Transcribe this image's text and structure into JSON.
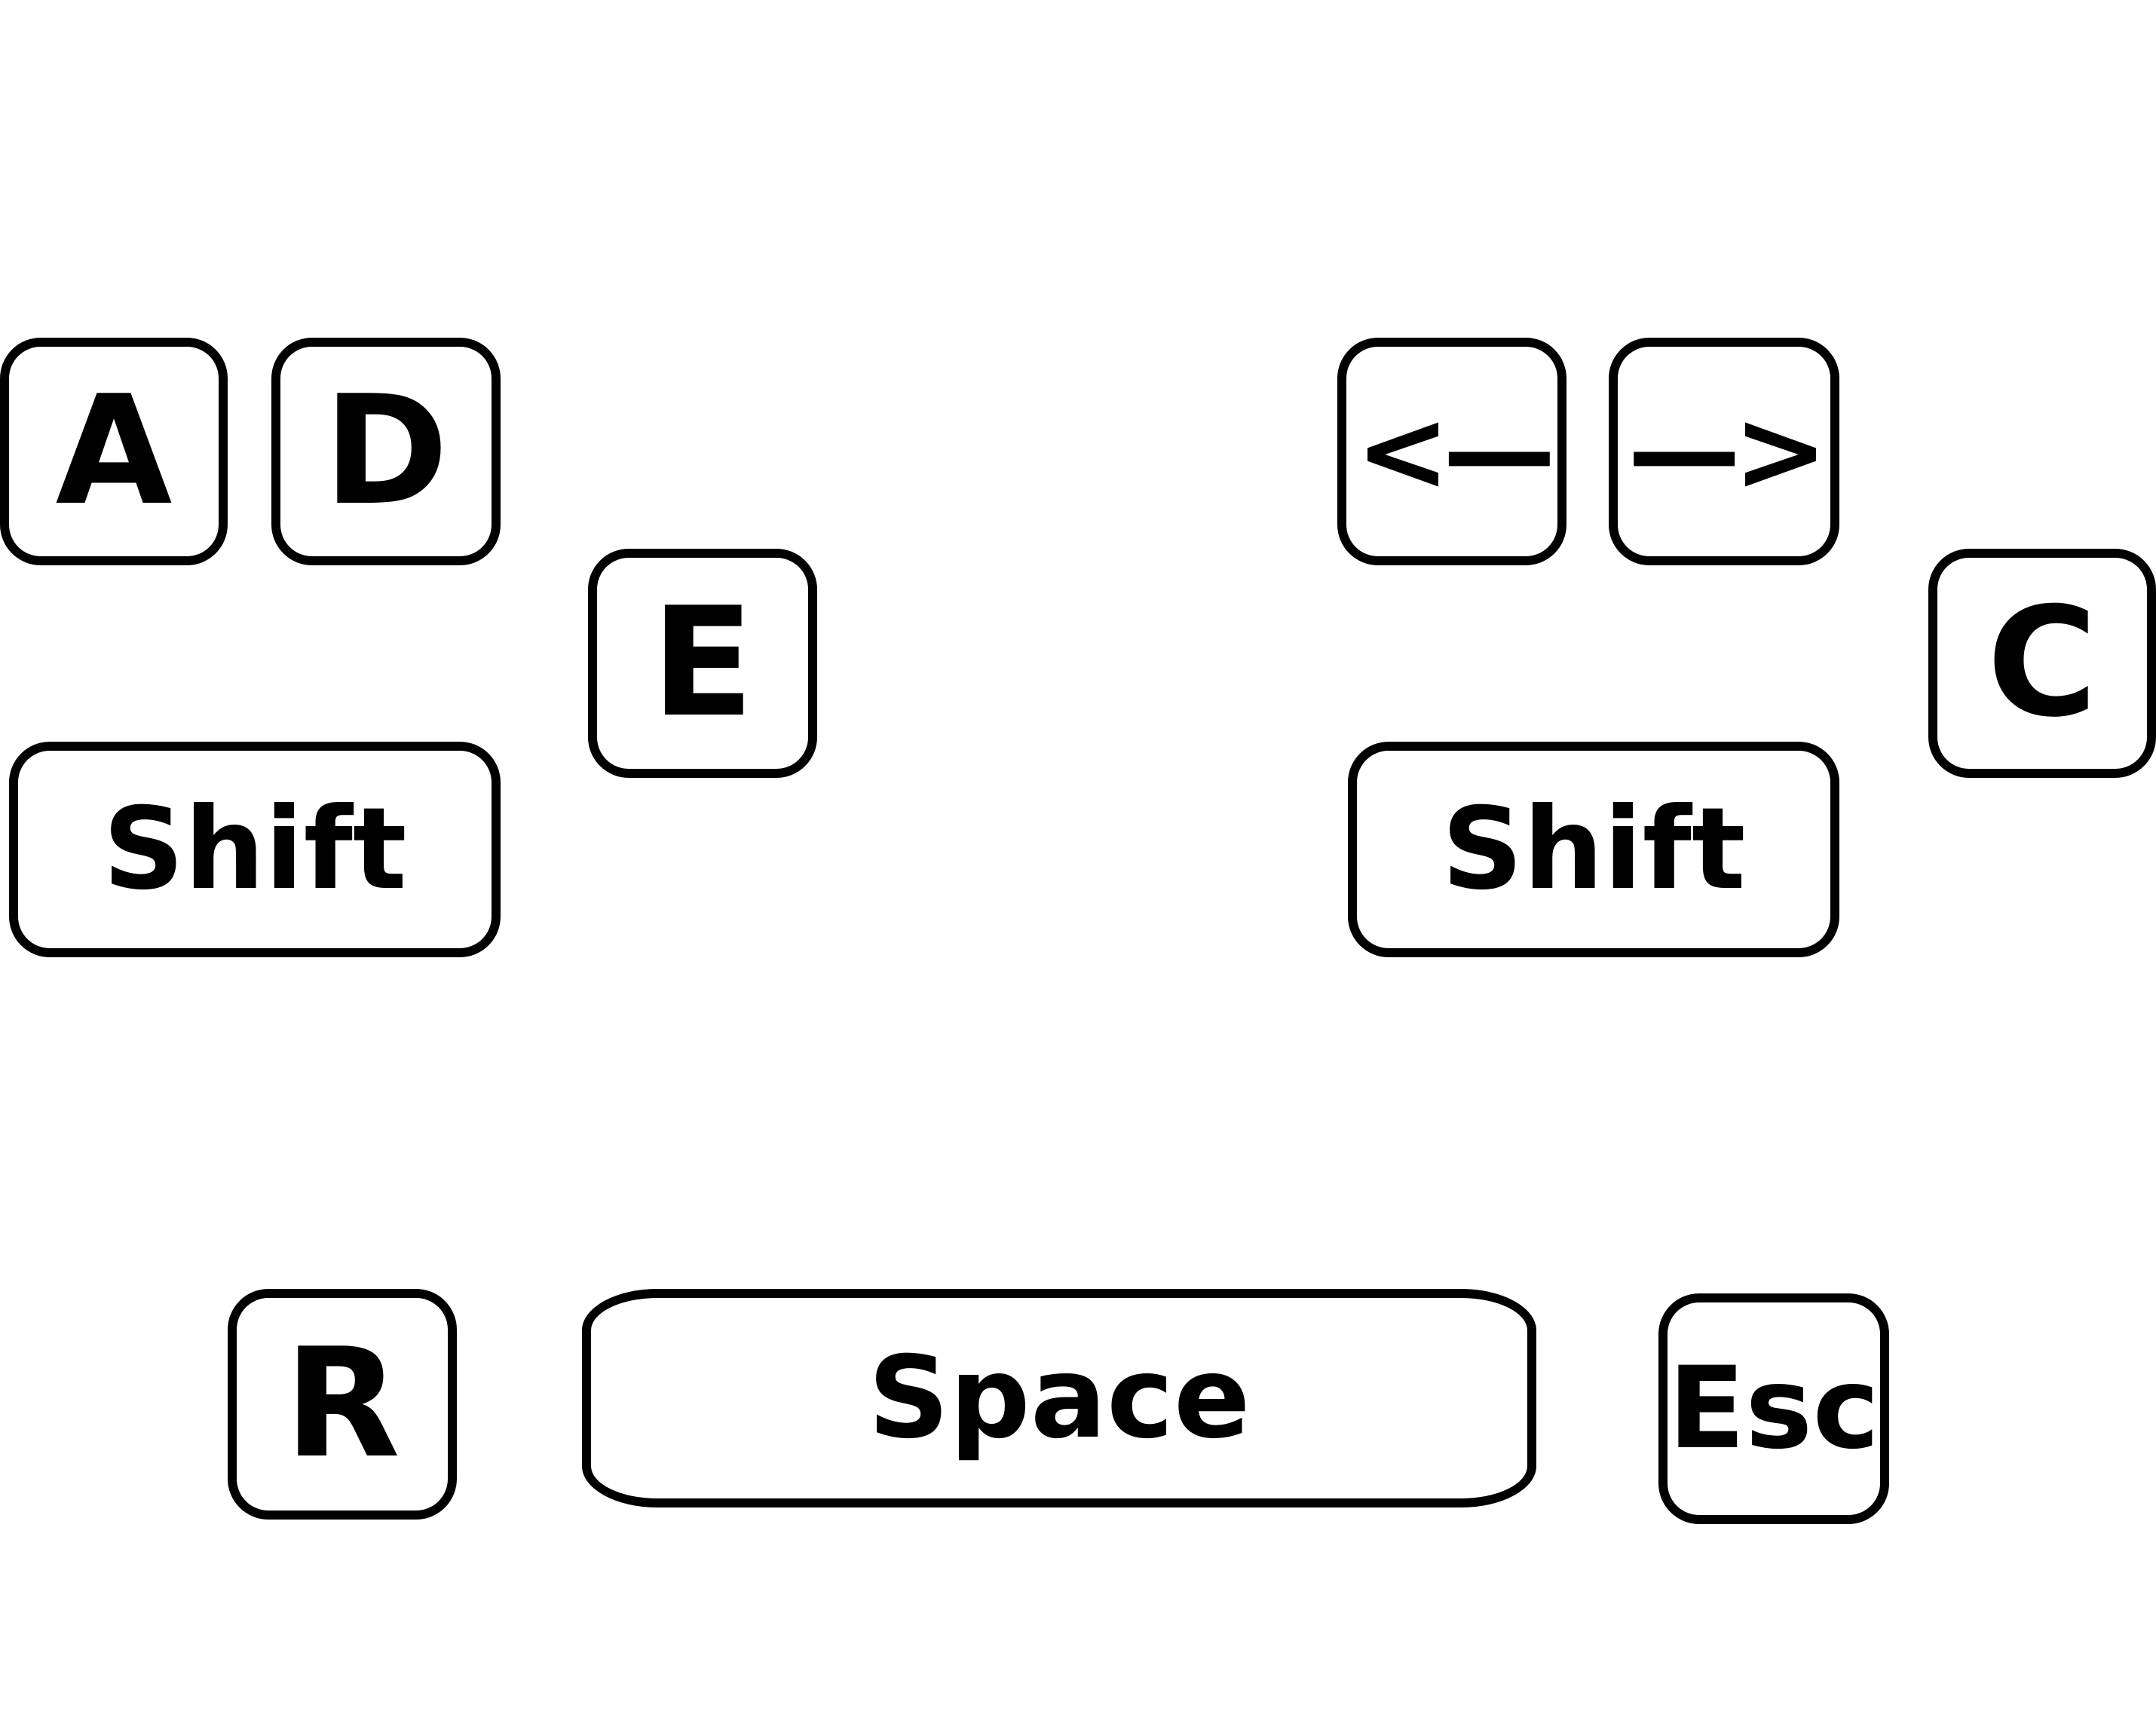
{
  "keys": {
    "a": "A",
    "d": "D",
    "e": "E",
    "left": "<—",
    "right": "—>",
    "c": "C",
    "shift_left": "Shift",
    "shift_right": "Shift",
    "r": "R",
    "space": "Space",
    "esc": "Esc"
  },
  "colors": {
    "border": "#000000",
    "text": "#000000",
    "background": "#ffffff"
  }
}
